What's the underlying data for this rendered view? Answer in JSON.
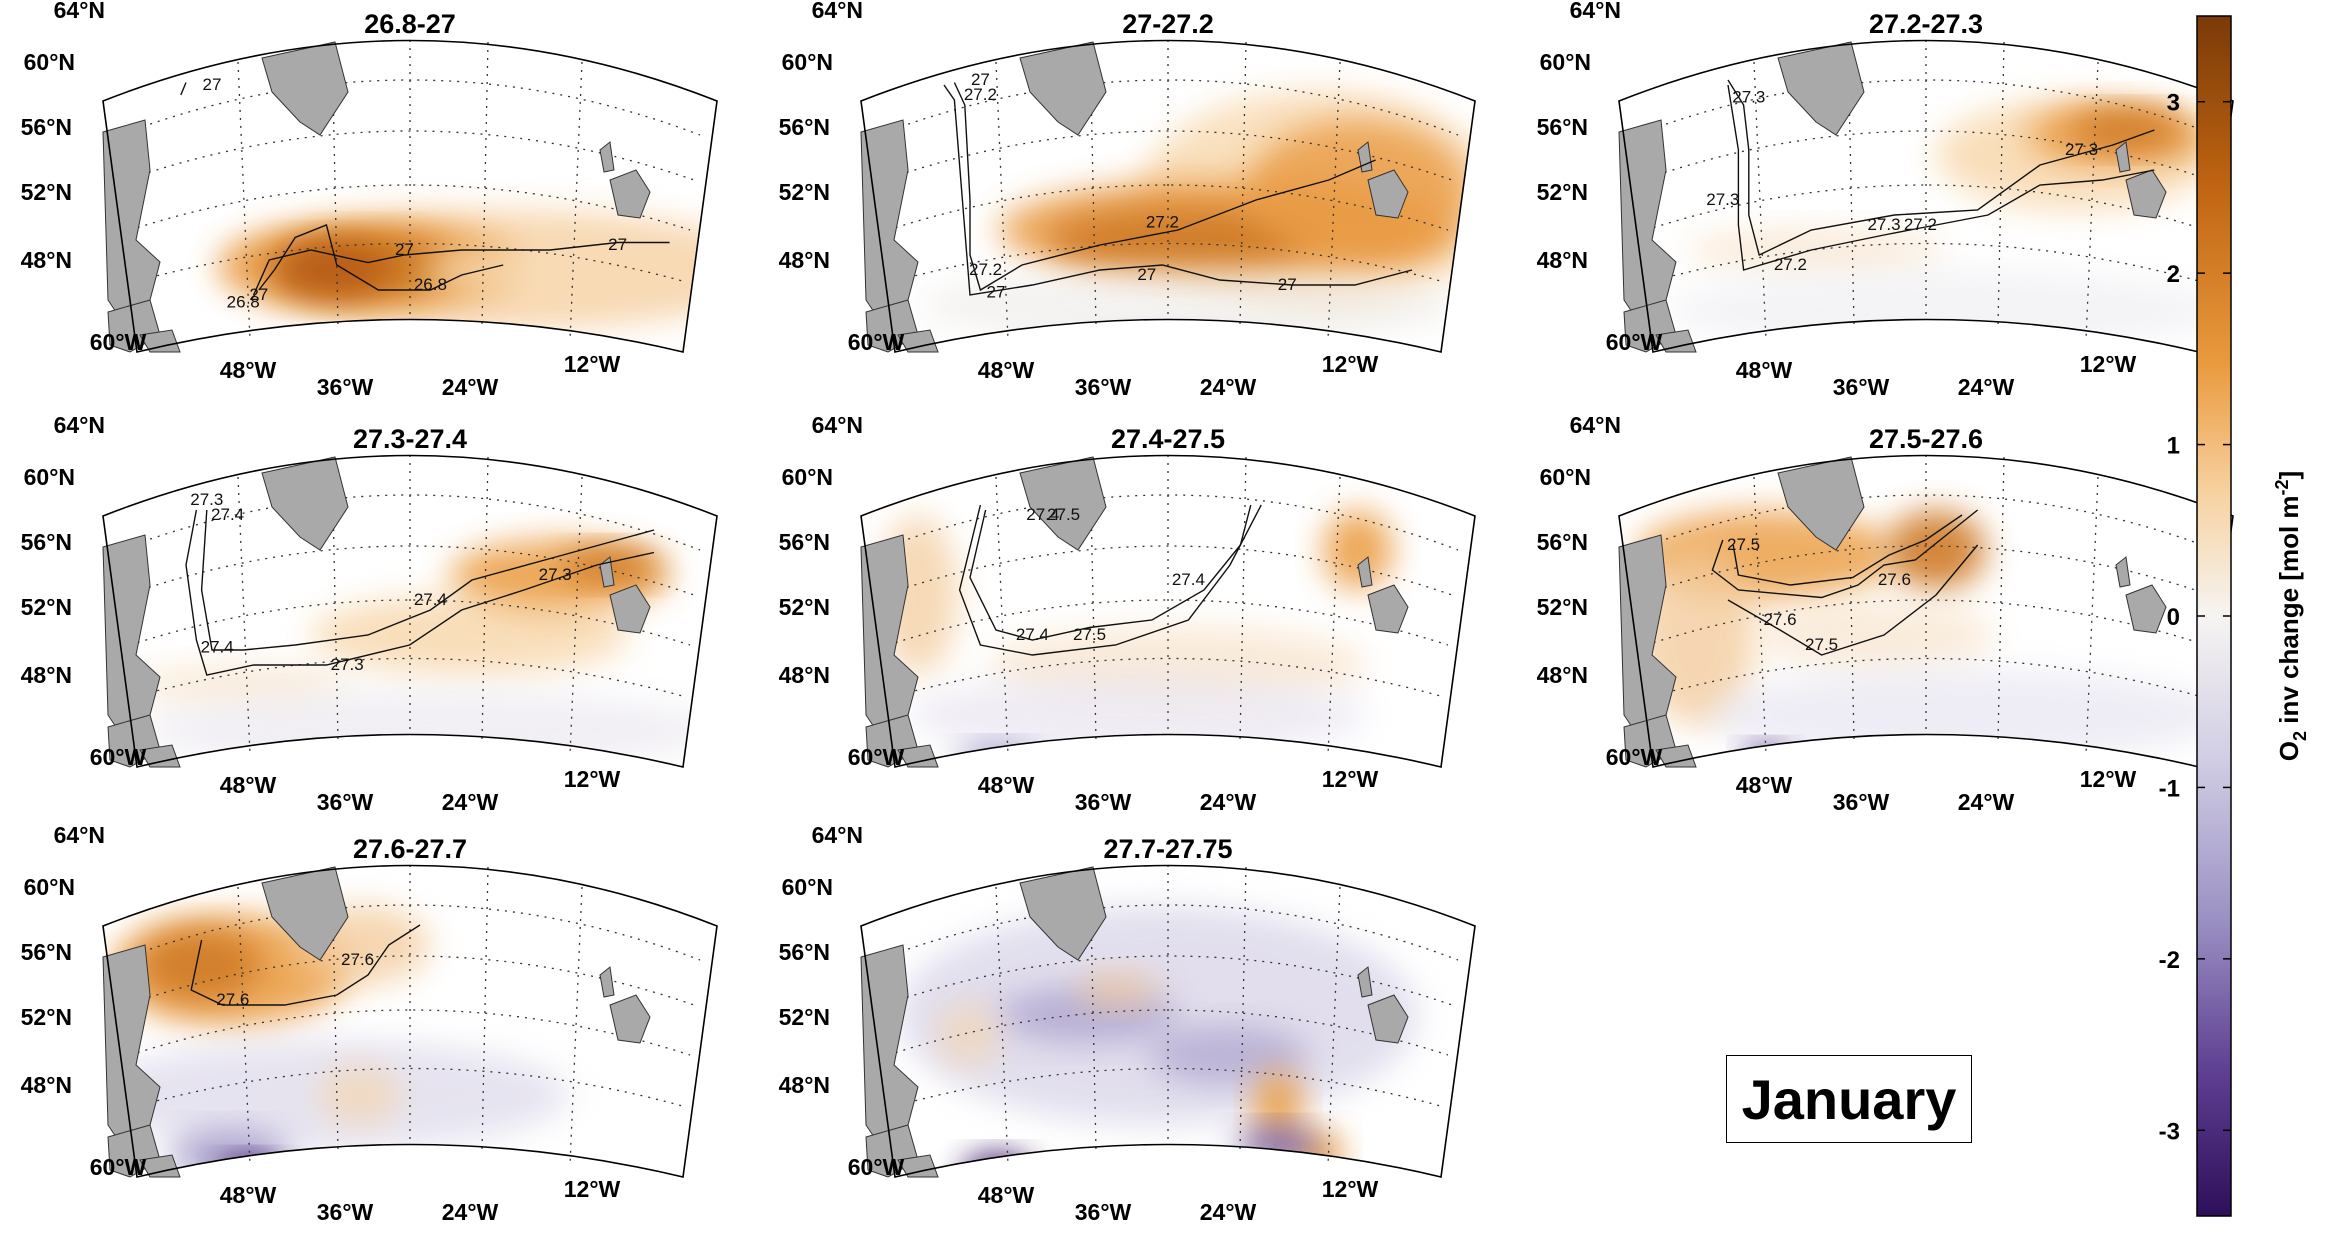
{
  "month": "January",
  "colorbar": {
    "label_main": "O",
    "label_sub": "2",
    "label_mid": " inv change [mol m",
    "label_sup": "-2",
    "label_end": "]",
    "min": -3.5,
    "max": 3.5,
    "ticks": [
      3,
      2,
      1,
      0,
      -1,
      -2,
      -3
    ],
    "colors": {
      "high": "#7a3a08",
      "mid": "#f6f4f2",
      "low": "#2d0f5a"
    }
  },
  "lat_labels": [
    "64°N",
    "60°N",
    "56°N",
    "52°N",
    "48°N"
  ],
  "lon_labels": [
    "60°W",
    "48°W",
    "36°W",
    "24°W",
    "12°W"
  ],
  "panels": [
    {
      "title": "26.8-27",
      "contours": [
        {
          "value": "27",
          "path": [
            [
              0.04,
              0.08
            ],
            [
              0.05,
              0.03
            ]
          ],
          "labels": [
            [
              0.1,
              0.06
            ]
          ]
        },
        {
          "value": "26.8",
          "path": [
            [
              0.19,
              0.86
            ],
            [
              0.22,
              0.78
            ],
            [
              0.26,
              0.65
            ],
            [
              0.32,
              0.6
            ],
            [
              0.34,
              0.76
            ],
            [
              0.42,
              0.86
            ],
            [
              0.52,
              0.86
            ],
            [
              0.58,
              0.8
            ],
            [
              0.66,
              0.76
            ]
          ],
          "labels": [
            [
              0.16,
              0.93
            ],
            [
              0.52,
              0.86
            ]
          ]
        },
        {
          "value": "27",
          "path": [
            [
              0.18,
              0.88
            ],
            [
              0.21,
              0.74
            ],
            [
              0.29,
              0.7
            ],
            [
              0.4,
              0.75
            ],
            [
              0.47,
              0.72
            ],
            [
              0.58,
              0.7
            ],
            [
              0.75,
              0.7
            ],
            [
              0.88,
              0.67
            ],
            [
              0.98,
              0.67
            ]
          ],
          "labels": [
            [
              0.19,
              0.9
            ],
            [
              0.47,
              0.72
            ],
            [
              0.88,
              0.7
            ]
          ]
        }
      ]
    },
    {
      "title": "27-27.2",
      "contours": [
        {
          "value": "27.2",
          "path": [
            [
              0.07,
              0.03
            ],
            [
              0.09,
              0.12
            ],
            [
              0.1,
              0.5
            ],
            [
              0.1,
              0.72
            ],
            [
              0.12,
              0.86
            ],
            [
              0.2,
              0.76
            ],
            [
              0.35,
              0.68
            ],
            [
              0.5,
              0.62
            ],
            [
              0.65,
              0.5
            ],
            [
              0.79,
              0.42
            ],
            [
              0.88,
              0.34
            ]
          ],
          "labels": [
            [
              0.12,
              0.1
            ],
            [
              0.13,
              0.8
            ],
            [
              0.47,
              0.61
            ]
          ]
        },
        {
          "value": "27",
          "path": [
            [
              0.05,
              0.04
            ],
            [
              0.07,
              0.1
            ],
            [
              0.1,
              0.88
            ],
            [
              0.22,
              0.84
            ],
            [
              0.35,
              0.78
            ],
            [
              0.47,
              0.76
            ],
            [
              0.58,
              0.82
            ],
            [
              0.72,
              0.84
            ],
            [
              0.84,
              0.84
            ],
            [
              0.95,
              0.78
            ]
          ],
          "labels": [
            [
              0.12,
              0.04
            ],
            [
              0.15,
              0.89
            ],
            [
              0.44,
              0.82
            ],
            [
              0.71,
              0.86
            ]
          ]
        }
      ]
    },
    {
      "title": "27.2-27.3",
      "contours": [
        {
          "value": "27.3",
          "path": [
            [
              0.1,
              0.02
            ],
            [
              0.13,
              0.12
            ],
            [
              0.14,
              0.3
            ],
            [
              0.14,
              0.56
            ],
            [
              0.16,
              0.72
            ],
            [
              0.26,
              0.62
            ],
            [
              0.42,
              0.56
            ],
            [
              0.58,
              0.54
            ],
            [
              0.7,
              0.36
            ],
            [
              0.84,
              0.28
            ],
            [
              0.92,
              0.22
            ]
          ],
          "labels": [
            [
              0.14,
              0.11
            ],
            [
              0.09,
              0.52
            ],
            [
              0.4,
              0.62
            ],
            [
              0.78,
              0.32
            ]
          ]
        },
        {
          "value": "27.2",
          "path": [
            [
              0.1,
              0.04
            ],
            [
              0.12,
              0.3
            ],
            [
              0.12,
              0.6
            ],
            [
              0.13,
              0.78
            ],
            [
              0.26,
              0.7
            ],
            [
              0.4,
              0.64
            ],
            [
              0.5,
              0.6
            ],
            [
              0.6,
              0.56
            ],
            [
              0.7,
              0.44
            ],
            [
              0.82,
              0.42
            ],
            [
              0.92,
              0.38
            ]
          ],
          "labels": [
            [
              0.47,
              0.62
            ],
            [
              0.22,
              0.78
            ]
          ]
        }
      ]
    },
    {
      "title": "27.3-27.4",
      "contours": [
        {
          "value": "27.3",
          "path": [
            [
              0.07,
              0.08
            ],
            [
              0.05,
              0.3
            ],
            [
              0.07,
              0.6
            ],
            [
              0.09,
              0.74
            ],
            [
              0.18,
              0.7
            ],
            [
              0.32,
              0.7
            ],
            [
              0.48,
              0.62
            ],
            [
              0.58,
              0.48
            ],
            [
              0.7,
              0.4
            ],
            [
              0.84,
              0.3
            ],
            [
              0.95,
              0.25
            ]
          ],
          "labels": [
            [
              0.09,
              0.06
            ],
            [
              0.36,
              0.72
            ],
            [
              0.76,
              0.36
            ]
          ]
        },
        {
          "value": "27.4",
          "path": [
            [
              0.09,
              0.08
            ],
            [
              0.08,
              0.4
            ],
            [
              0.1,
              0.64
            ],
            [
              0.16,
              0.64
            ],
            [
              0.26,
              0.62
            ],
            [
              0.4,
              0.58
            ],
            [
              0.52,
              0.48
            ],
            [
              0.6,
              0.36
            ],
            [
              0.74,
              0.28
            ],
            [
              0.88,
              0.2
            ],
            [
              0.95,
              0.16
            ]
          ],
          "labels": [
            [
              0.13,
              0.12
            ],
            [
              0.11,
              0.65
            ],
            [
              0.52,
              0.46
            ]
          ]
        }
      ]
    },
    {
      "title": "27.4-27.5",
      "contours": [
        {
          "value": "27.4",
          "path": [
            [
              0.13,
              0.08
            ],
            [
              0.1,
              0.35
            ],
            [
              0.15,
              0.56
            ],
            [
              0.22,
              0.6
            ],
            [
              0.33,
              0.55
            ],
            [
              0.45,
              0.52
            ],
            [
              0.55,
              0.4
            ],
            [
              0.62,
              0.22
            ],
            [
              0.64,
              0.06
            ]
          ],
          "labels": [
            [
              0.24,
              0.12
            ],
            [
              0.22,
              0.6
            ],
            [
              0.52,
              0.38
            ]
          ]
        },
        {
          "value": "27.5",
          "path": [
            [
              0.12,
              0.06
            ],
            [
              0.08,
              0.4
            ],
            [
              0.12,
              0.62
            ],
            [
              0.22,
              0.66
            ],
            [
              0.38,
              0.62
            ],
            [
              0.52,
              0.52
            ],
            [
              0.6,
              0.3
            ],
            [
              0.66,
              0.06
            ]
          ],
          "labels": [
            [
              0.28,
              0.12
            ],
            [
              0.33,
              0.6
            ]
          ]
        }
      ]
    },
    {
      "title": "27.5-27.6",
      "contours": [
        {
          "value": "27.5",
          "path": [
            [
              0.09,
              0.2
            ],
            [
              0.07,
              0.32
            ],
            [
              0.12,
              0.4
            ],
            [
              0.28,
              0.43
            ],
            [
              0.35,
              0.38
            ],
            [
              0.4,
              0.3
            ],
            [
              0.46,
              0.28
            ],
            [
              0.52,
              0.18
            ],
            [
              0.58,
              0.08
            ]
          ],
          "labels": [
            [
              0.13,
              0.24
            ],
            [
              0.28,
              0.64
            ]
          ]
        },
        {
          "value": "27.6",
          "path": [
            [
              0.11,
              0.22
            ],
            [
              0.12,
              0.34
            ],
            [
              0.22,
              0.38
            ],
            [
              0.34,
              0.35
            ],
            [
              0.41,
              0.26
            ],
            [
              0.48,
              0.2
            ],
            [
              0.55,
              0.1
            ]
          ],
          "labels": [
            [
              0.42,
              0.38
            ],
            [
              0.2,
              0.54
            ]
          ]
        },
        {
          "value": "27.5",
          "path": [
            [
              0.1,
              0.44
            ],
            [
              0.2,
              0.56
            ],
            [
              0.28,
              0.66
            ],
            [
              0.4,
              0.58
            ],
            [
              0.5,
              0.42
            ],
            [
              0.58,
              0.22
            ]
          ],
          "labels": []
        }
      ]
    },
    {
      "title": "27.6-27.7",
      "contours": [
        {
          "value": "27.6",
          "path": [
            [
              0.08,
              0.16
            ],
            [
              0.06,
              0.36
            ],
            [
              0.12,
              0.42
            ],
            [
              0.24,
              0.42
            ],
            [
              0.34,
              0.38
            ],
            [
              0.4,
              0.3
            ],
            [
              0.44,
              0.18
            ],
            [
              0.5,
              0.1
            ]
          ],
          "labels": [
            [
              0.14,
              0.42
            ],
            [
              0.38,
              0.26
            ]
          ]
        }
      ]
    },
    {
      "title": "27.7-27.75",
      "contours": []
    }
  ]
}
